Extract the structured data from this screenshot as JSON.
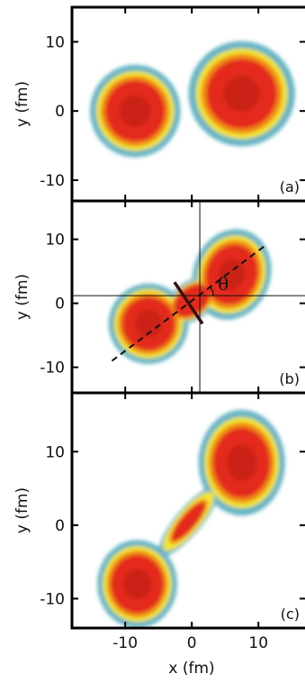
{
  "figure": {
    "xlabel": "x (fm)",
    "ylabel": "y (fm)",
    "theta_symbol": "θ"
  },
  "chart_data": [
    {
      "type": "heatmap",
      "panel": "(a)",
      "ylabel": "y (fm)",
      "xlim": [
        -18,
        17
      ],
      "ylim": [
        -13,
        15
      ],
      "y_ticks": [
        10,
        0,
        -10
      ],
      "colors": {
        "outer": "#67b5c5",
        "low": "#f2e52e",
        "mid": "#f08a12",
        "high": "#e32a1a",
        "peak": "#b71818"
      },
      "blobs": [
        {
          "cx": -8.5,
          "cy": 0,
          "rx": 6.8,
          "ry": 6.7,
          "rot": 0,
          "w": 1.0
        },
        {
          "cx": 7.5,
          "cy": 2.5,
          "rx": 8.0,
          "ry": 7.6,
          "rot": 0,
          "w": 1.0
        }
      ]
    },
    {
      "type": "heatmap",
      "panel": "(b)",
      "ylabel": "y (fm)",
      "xlim": [
        -18,
        17
      ],
      "ylim": [
        -14,
        16
      ],
      "y_ticks": [
        10,
        0,
        -10
      ],
      "crosshair": {
        "x": 1.2,
        "y": 1.2
      },
      "axis_line": {
        "x1": -12,
        "y1": -9,
        "x2": 11,
        "y2": 9
      },
      "neck_line": {
        "x1": -2.6,
        "y1": 3.3,
        "x2": 1.6,
        "y2": -3.2
      },
      "angle_label": "θ",
      "colors": {
        "outer": "#67b5c5",
        "low": "#f2e52e",
        "mid": "#f08a12",
        "high": "#e32a1a",
        "peak": "#b71818"
      },
      "blobs": [
        {
          "cx": -6.5,
          "cy": -3.2,
          "rx": 6.0,
          "ry": 6.3,
          "rot": -20,
          "w": 1.0
        },
        {
          "cx": 6.0,
          "cy": 4.5,
          "rx": 5.8,
          "ry": 7.2,
          "rot": -20,
          "w": 1.0
        },
        {
          "cx": 0.0,
          "cy": 0.4,
          "rx": 4.3,
          "ry": 3.0,
          "rot": 38,
          "w": 0.8
        }
      ]
    },
    {
      "type": "heatmap",
      "panel": "(c)",
      "ylabel": "y (fm)",
      "xlabel": "x (fm)",
      "xlim": [
        -18,
        17
      ],
      "ylim": [
        -14,
        18
      ],
      "x_ticks": [
        -10,
        0,
        10
      ],
      "y_ticks": [
        10,
        0,
        -10
      ],
      "colors": {
        "outer": "#67b5c5",
        "low": "#f2e52e",
        "mid": "#f08a12",
        "high": "#e32a1a",
        "peak": "#b71818"
      },
      "blobs": [
        {
          "cx": -8.2,
          "cy": -8.0,
          "rx": 6.0,
          "ry": 6.0,
          "rot": 0,
          "w": 1.0
        },
        {
          "cx": 7.5,
          "cy": 8.5,
          "rx": 6.5,
          "ry": 7.2,
          "rot": 0,
          "w": 1.0
        },
        {
          "cx": -0.5,
          "cy": 0.5,
          "rx": 6.5,
          "ry": 1.8,
          "rot": 50,
          "w": 0.6
        }
      ]
    }
  ]
}
